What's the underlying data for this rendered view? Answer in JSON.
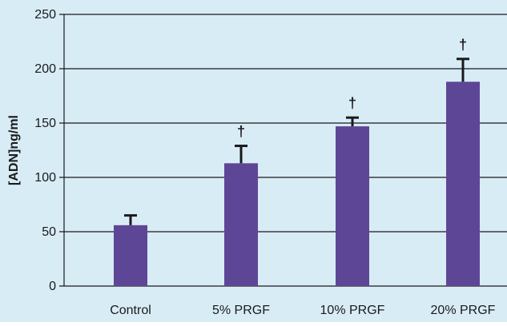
{
  "chart_data": {
    "type": "bar",
    "categories": [
      "Control",
      "5% PRGF",
      "10% PRGF",
      "20% PRGF"
    ],
    "values": [
      56,
      113,
      147,
      188
    ],
    "error_upper": [
      65,
      129,
      155,
      209
    ],
    "annotations": [
      "",
      "†",
      "†",
      "†"
    ],
    "title": "",
    "xlabel": "",
    "ylabel": "[ADN]ng/ml",
    "ylim": [
      0,
      250
    ],
    "yticks": [
      0,
      50,
      100,
      150,
      200,
      250
    ],
    "grid": true,
    "legend": "none"
  },
  "colors": {
    "plot_background": "#d8ecf6",
    "bar": "#5e4696",
    "gridline": "#1a1a1a",
    "error_bar": "#1a1a1a"
  }
}
